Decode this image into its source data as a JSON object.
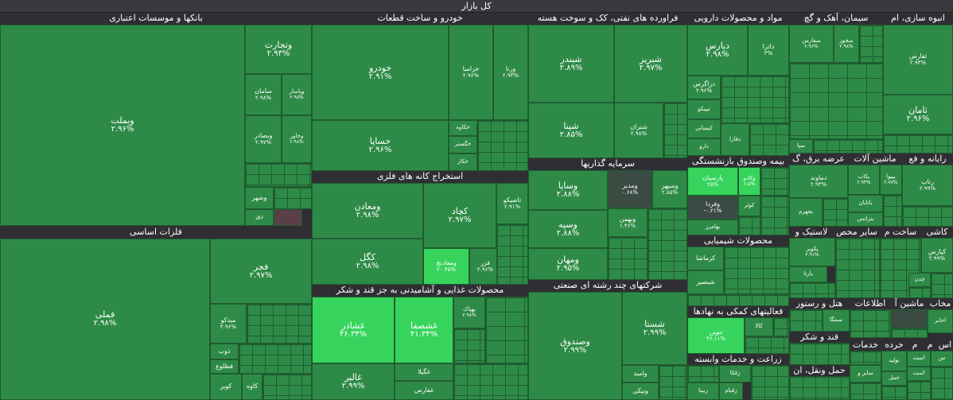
{
  "title": "کل بازار",
  "sectors": {
    "banks": "بانکها و موسسات اعتباری",
    "auto": "خودرو و ساخت قطعات",
    "oil": "فراورده های نفتی، کک و سوخت هسته",
    "pharma": "مواد و محصولات دارویی",
    "cement": "سیمان، آهک و گچ",
    "mass": "انبوه سازی، ام",
    "metals": "فلزات اساسی",
    "mining": "استخراج کانه های فلزی",
    "invest": "سرمایه گذاریها",
    "insurance": "بیمه وصندوق بازنشستگی",
    "comp": "رایانه و فع",
    "power": "عرضه برق، گ",
    "machines": "ماشین آلات",
    "food": "محصولات غذایی و آشامیدنی به جز قند و شکر",
    "multi": "شرکتهای چند رشته ای صنعتی",
    "chem": "محصولات شیمیایی",
    "support": "فعالیتهای کمکی به نهادها",
    "agri": "زراعت و خدمات وابسته",
    "tiles": "کاشی",
    "tech": "ساخت م",
    "eng": "سایر محص",
    "lastic": "لاستیک و",
    "hotel": "هتل و رستور",
    "info": "اطلاعات",
    "machA": "ماشین آ",
    "press": "مخاب",
    "sugar": "قند و شکر",
    "transport": "حمل ونقل، ان",
    "services": "خدمات",
    "wood": "خرده",
    "m1": "م",
    "m2": "م",
    "sa": "اس"
  },
  "tiles": {
    "vbmellat": {
      "name": "وبملت",
      "pct": "۲.۹۶%"
    },
    "vtejarat": {
      "name": "وتجارت",
      "pct": "۲.۹۳%"
    },
    "vsaman": {
      "name": "سامان",
      "pct": "۲.۹۸%"
    },
    "vpasar": {
      "name": "وپاسار",
      "pct": "۲.۹۵%"
    },
    "vbsader": {
      "name": "وبصادر",
      "pct": "۲.۹۷%"
    },
    "vkhavar": {
      "name": "وخاور",
      "pct": "۲.۹۸%"
    },
    "vshahr": {
      "name": "وشهر",
      "pct": ""
    },
    "dey": {
      "name": "دی",
      "pct": ""
    },
    "khodro": {
      "name": "خودرو",
      "pct": "۲.۹۱%"
    },
    "khsapa": {
      "name": "خساپا",
      "pct": "۲.۹۶%"
    },
    "kheramia": {
      "name": "خزامیا",
      "pct": "۲.۹۶%"
    },
    "vrena": {
      "name": "ورنا",
      "pct": "۲.۹۳%"
    },
    "khkave": {
      "name": "خکاوه",
      "pct": ""
    },
    "khgostar": {
      "name": "خگستر",
      "pct": ""
    },
    "khkar": {
      "name": "خکار",
      "pct": ""
    },
    "shbandar": {
      "name": "شبندر",
      "pct": "۲.۸۹%"
    },
    "shpna": {
      "name": "شپنا",
      "pct": "۲.۸۵%"
    },
    "shtabriz": {
      "name": "شبریز",
      "pct": "۲.۹۷%"
    },
    "shtran": {
      "name": "شتران",
      "pct": "۲.۹۸%"
    },
    "dpars": {
      "name": "دپارس",
      "pct": "۲.۹۸%"
    },
    "dtara": {
      "name": "داترا",
      "pct": "۳%"
    },
    "dzagros": {
      "name": "دزاگرس",
      "pct": "۲.۹۶%"
    },
    "tipiko": {
      "name": "تیپیکو",
      "pct": ""
    },
    "kimizi": {
      "name": "کیمیاتی",
      "pct": ""
    },
    "dfara": {
      "name": "دفارا",
      "pct": ""
    },
    "darou": {
      "name": "دارو",
      "pct": ""
    },
    "sfars": {
      "name": "سفارس",
      "pct": "۲.۹۶%"
    },
    "ssharq": {
      "name": "سخوز",
      "pct": "۲.۹۸%"
    },
    "sepa": {
      "name": "سپا",
      "pct": ""
    },
    "tfars": {
      "name": "ثفارس",
      "pct": "۲.۹۳%"
    },
    "saman2": {
      "name": "ثامان",
      "pct": "۲.۹۶%"
    },
    "fameli": {
      "name": "فملی",
      "pct": "۲.۹۸%"
    },
    "fajr": {
      "name": "فجر",
      "pct": "۲.۹۷%"
    },
    "mideko": {
      "name": "میدکو",
      "pct": "۲.۹۶%"
    },
    "zob": {
      "name": "ذوب",
      "pct": ""
    },
    "ftalo": {
      "name": "فطلوع",
      "pct": ""
    },
    "kovir": {
      "name": "کویر",
      "pct": ""
    },
    "kave": {
      "name": "کاوه",
      "pct": ""
    },
    "vmaaden": {
      "name": "ومعادن",
      "pct": "۲.۹۸%"
    },
    "kchad": {
      "name": "کچاد",
      "pct": "۲.۹۷%"
    },
    "tapiko": {
      "name": "تاصیکو",
      "pct": "۲.۹۱%"
    },
    "kgol": {
      "name": "کگل",
      "pct": "۲.۹۸%"
    },
    "vmaadenj": {
      "name": "ومعادنج",
      "pct": "۲۰.۴۵%"
    },
    "fzar": {
      "name": "فزر",
      "pct": "۲.۹۶%"
    },
    "vsapa": {
      "name": "وساپا",
      "pct": "۲.۸۸%"
    },
    "vsepah": {
      "name": "وسپه",
      "pct": "۲.۸۸%"
    },
    "vmhan": {
      "name": "ومهان",
      "pct": "۲.۹۵%"
    },
    "vmadir": {
      "name": "ومدیر",
      "pct": "۰.۶۸%"
    },
    "vsepahr": {
      "name": "وسپهر",
      "pct": "۲.۸۵%"
    },
    "vbhman": {
      "name": "وبهمن",
      "pct": "۱.۴۶%"
    },
    "parsian": {
      "name": "پارسیان",
      "pct": "۲۵%"
    },
    "vkado": {
      "name": "وکادو",
      "pct": "۶.۵%"
    },
    "kowsar": {
      "name": "کوثر",
      "pct": ""
    },
    "vfarda": {
      "name": "وفردا",
      "pct": "-۰.۲۱%"
    },
    "bahmarz": {
      "name": "بهامرز",
      "pct": ""
    },
    "damavand": {
      "name": "دماوند",
      "pct": "۲.۹۳%"
    },
    "bjhrm": {
      "name": "بجهرم",
      "pct": ""
    },
    "bkab": {
      "name": "بکاب",
      "pct": "۲.۹۴%"
    },
    "bpivand": {
      "name": "بپیوا",
      "pct": "۲.۷۷%"
    },
    "rtab": {
      "name": "رتاپ",
      "pct": "۲.۹۹%"
    },
    "bataban": {
      "name": "باتابان",
      "pct": ""
    },
    "bkrans": {
      "name": "بترانس",
      "pct": ""
    },
    "kermasha": {
      "name": "کرماشا",
      "pct": ""
    },
    "shbsir": {
      "name": "شبصیر",
      "pct": ""
    },
    "pakviran": {
      "name": "پکویر",
      "pct": "۲.۹۱%"
    },
    "parta": {
      "name": "پارتا",
      "pct": ""
    },
    "kpars": {
      "name": "کپارس",
      "pct": "۲.۹۹%"
    },
    "chden": {
      "name": "چدن",
      "pct": ""
    },
    "ghshazar": {
      "name": "غشاذر",
      "pct": "۴۶.۳۴%"
    },
    "ghshasafa": {
      "name": "غشصفا",
      "pct": "۴۱.۳۴%"
    },
    "bhpak": {
      "name": "بهپاک",
      "pct": "۲.۹۸%"
    },
    "ghalbor": {
      "name": "غالبر",
      "pct": "۲.۹۹%"
    },
    "ghgol": {
      "name": "غگیلا",
      "pct": ""
    },
    "ghfars": {
      "name": "غفارس",
      "pct": ""
    },
    "vsandogh": {
      "name": "وصندوق",
      "pct": "۲.۹۹%"
    },
    "shasta": {
      "name": "شستا",
      "pct": "۲.۹۹%"
    },
    "vamid": {
      "name": "وامید",
      "pct": ""
    },
    "vnikei": {
      "name": "ونیکی",
      "pct": ""
    },
    "tonobin": {
      "name": "تنوین",
      "pct": "۳۶.۱۱%"
    },
    "kala": {
      "name": "کالا",
      "pct": ""
    },
    "zfkha": {
      "name": "زفکا",
      "pct": ""
    },
    "zoghiam": {
      "name": "زقیام",
      "pct": ""
    },
    "zbina": {
      "name": "زبینا",
      "pct": ""
    },
    "sgha": {
      "name": "سمگا",
      "pct": ""
    },
    "akhbar": {
      "name": "اخابر",
      "pct": ""
    },
    "tolid": {
      "name": "تولید",
      "pct": ""
    },
    "sayer": {
      "name": "سایر و",
      "pct": ""
    },
    "haml": {
      "name": "حمل",
      "pct": ""
    },
    "asat": {
      "name": "است",
      "pct": ""
    },
    "asat2": {
      "name": "است",
      "pct": ""
    },
    "s1": {
      "name": "س",
      "pct": ""
    }
  }
}
